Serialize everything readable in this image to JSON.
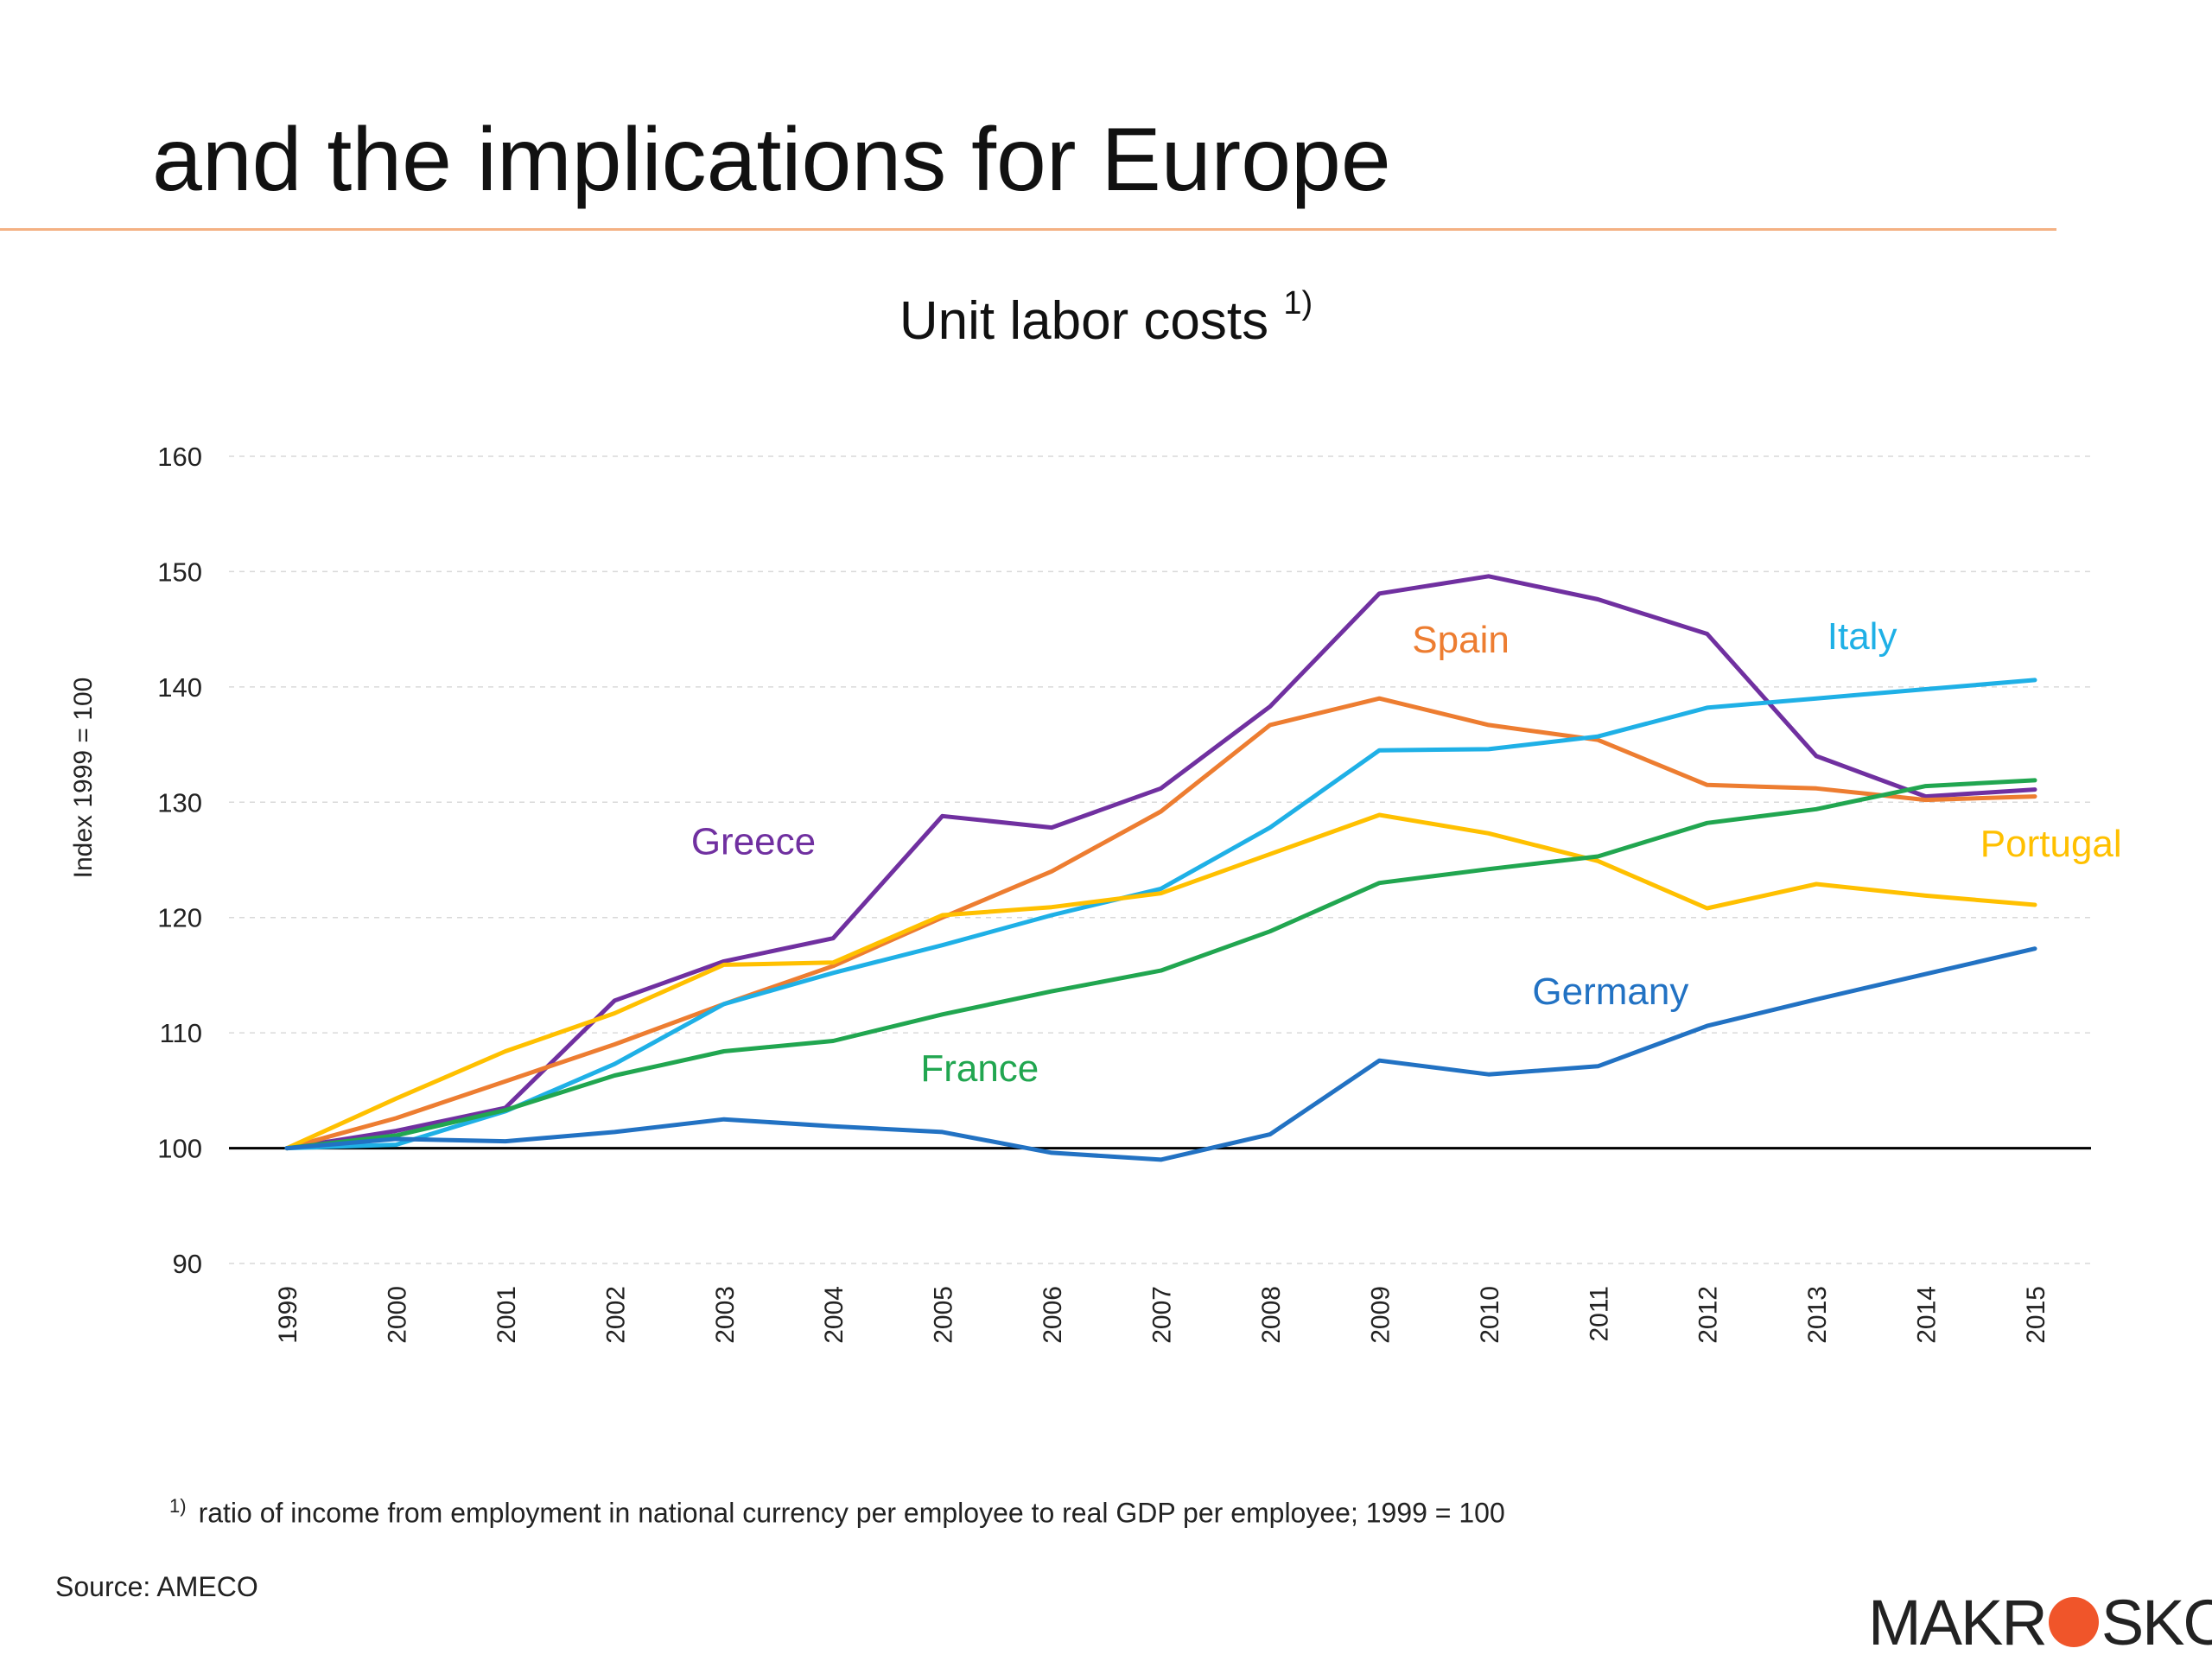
{
  "slide": {
    "title": "and the implications for Europe",
    "footnote_marker": "1)",
    "footnote": "ratio of income from employment in national currency per employee to real GDP per employee; 1999 = 100",
    "source": "Source: AMECO",
    "logo": {
      "left": "MAKR",
      "right": "SKOP",
      "dot_color": "#f0552a"
    }
  },
  "chart_data": {
    "type": "line",
    "title": "Unit labor costs",
    "title_marker": "1)",
    "ylabel": "Index 1999 = 100",
    "xlabel": "",
    "ylim": [
      90,
      160
    ],
    "yticks": [
      90,
      100,
      110,
      120,
      130,
      140,
      150,
      160
    ],
    "grid": true,
    "baseline": 100,
    "legend": "inline labels",
    "x": [
      "1999",
      "2000",
      "2001",
      "2002",
      "2003",
      "2004",
      "2005",
      "2006",
      "2007",
      "2008",
      "2009",
      "2010",
      "2011",
      "2012",
      "2013",
      "2014",
      "2015"
    ],
    "series": [
      {
        "name": "Greece",
        "color": "#7030a0",
        "values": [
          100,
          101.5,
          103.5,
          112.8,
          116.2,
          118.2,
          128.8,
          127.8,
          131.2,
          138.3,
          148.1,
          149.6,
          147.6,
          144.6,
          134.0,
          130.5,
          131.1
        ],
        "label_x": 2002.7,
        "label_y": 125.5
      },
      {
        "name": "Spain",
        "color": "#ed7d31",
        "values": [
          100,
          102.6,
          105.8,
          109.0,
          112.5,
          115.8,
          120.0,
          124.0,
          129.2,
          136.7,
          139.0,
          136.7,
          135.4,
          131.5,
          131.2,
          130.2,
          130.5
        ],
        "label_x": 2009.3,
        "label_y": 143.0
      },
      {
        "name": "Italy",
        "color": "#1fb0e6",
        "values": [
          100,
          100.3,
          103.2,
          107.3,
          112.5,
          115.2,
          117.6,
          120.2,
          122.5,
          127.8,
          134.5,
          134.6,
          135.7,
          138.2,
          139.0,
          139.8,
          140.6
        ],
        "label_x": 2013.1,
        "label_y": 143.3
      },
      {
        "name": "Portugal",
        "color": "#ffc000",
        "values": [
          100,
          104.3,
          108.4,
          111.7,
          115.9,
          116.1,
          120.2,
          120.9,
          122.1,
          125.5,
          128.9,
          127.3,
          124.9,
          120.8,
          122.9,
          121.9,
          121.1
        ],
        "label_x": 2014.5,
        "label_y": 125.3
      },
      {
        "name": "France",
        "color": "#21a650",
        "values": [
          100,
          101.1,
          103.3,
          106.3,
          108.4,
          109.3,
          111.6,
          113.6,
          115.4,
          118.8,
          123.0,
          124.2,
          125.3,
          128.2,
          129.4,
          131.4,
          131.9
        ],
        "label_x": 2004.8,
        "label_y": 105.8
      },
      {
        "name": "Germany",
        "color": "#2272c3",
        "values": [
          100,
          100.8,
          100.6,
          101.4,
          102.5,
          101.9,
          101.4,
          99.6,
          99.0,
          101.2,
          107.6,
          106.4,
          107.1,
          110.6,
          112.9,
          115.1,
          117.3
        ],
        "label_x": 2010.4,
        "label_y": 112.5
      }
    ]
  }
}
